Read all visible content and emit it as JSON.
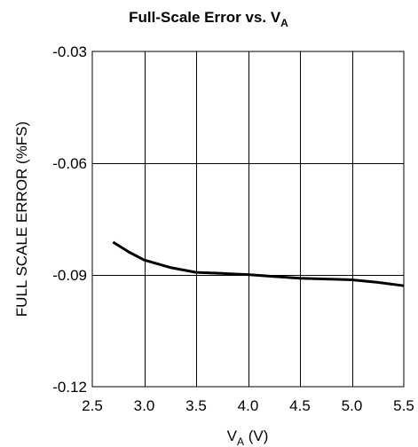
{
  "chart_data": {
    "type": "line",
    "title": {
      "main": "Full-Scale Error vs. V",
      "subscript": "A"
    },
    "xlabel": {
      "main": "V",
      "subscript": "A",
      "suffix": " (V)"
    },
    "ylabel": "FULL SCALE ERROR (%FS)",
    "xlim": [
      2.5,
      5.5
    ],
    "ylim": [
      -0.12,
      -0.03
    ],
    "xticks": [
      2.5,
      3.0,
      3.5,
      4.0,
      4.5,
      5.0,
      5.5
    ],
    "xtick_labels": [
      "2.5",
      "3.0",
      "3.5",
      "4.0",
      "4.5",
      "5.0",
      "5.5"
    ],
    "yticks": [
      -0.03,
      -0.06,
      -0.09,
      -0.12
    ],
    "ytick_labels": [
      "-0.03",
      "-0.06",
      "-0.09",
      "-0.12"
    ],
    "grid": true,
    "legend": "none",
    "series": [
      {
        "x": [
          2.7,
          2.85,
          3.0,
          3.25,
          3.5,
          3.75,
          4.0,
          4.25,
          4.5,
          4.75,
          5.0,
          5.25,
          5.5
        ],
        "y": [
          -0.0812,
          -0.0838,
          -0.086,
          -0.088,
          -0.0893,
          -0.0896,
          -0.0899,
          -0.0904,
          -0.0909,
          -0.0911,
          -0.0913,
          -0.092,
          -0.0929
        ],
        "color": "#000000"
      }
    ]
  }
}
